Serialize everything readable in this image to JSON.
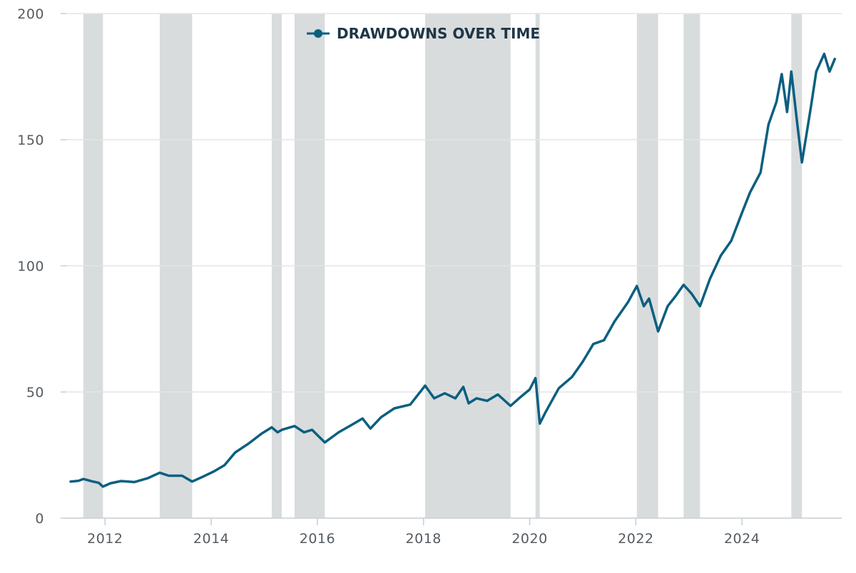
{
  "colors": {
    "line": "#0b5f80",
    "shade": "#d9dcdd",
    "grid": "#e3e5e6",
    "axis": "#c5cdd3",
    "tick_text": "#555b60",
    "legend_text": "#1f3646"
  },
  "legend": {
    "label": "DRAWDOWNS OVER TIME",
    "marker": "line-circle-icon"
  },
  "chart_data": {
    "type": "line",
    "title": "",
    "xlabel": "",
    "ylabel": "",
    "x_range": [
      2011.27,
      2025.88
    ],
    "ylim": [
      0,
      200
    ],
    "y_ticks": [
      0,
      50,
      100,
      150,
      200
    ],
    "x_ticks": [
      2012,
      2014,
      2016,
      2018,
      2020,
      2022,
      2024
    ],
    "grid": true,
    "legend_position": "top-center",
    "drawdown_periods": [
      [
        2011.59,
        2011.96
      ],
      [
        2013.03,
        2013.64
      ],
      [
        2015.14,
        2015.33
      ],
      [
        2015.57,
        2016.14
      ],
      [
        2018.03,
        2019.64
      ],
      [
        2020.11,
        2020.19
      ],
      [
        2022.02,
        2022.42
      ],
      [
        2022.9,
        2023.21
      ],
      [
        2024.93,
        2025.13
      ]
    ],
    "series": [
      {
        "name": "DRAWDOWNS OVER TIME",
        "points": [
          [
            2011.35,
            14.5
          ],
          [
            2011.5,
            14.8
          ],
          [
            2011.59,
            15.5
          ],
          [
            2011.75,
            14.6
          ],
          [
            2011.88,
            14.0
          ],
          [
            2011.96,
            12.5
          ],
          [
            2012.1,
            13.8
          ],
          [
            2012.3,
            14.7
          ],
          [
            2012.55,
            14.3
          ],
          [
            2012.8,
            15.8
          ],
          [
            2013.03,
            18.0
          ],
          [
            2013.2,
            16.8
          ],
          [
            2013.45,
            16.8
          ],
          [
            2013.64,
            14.5
          ],
          [
            2013.85,
            16.5
          ],
          [
            2014.05,
            18.5
          ],
          [
            2014.25,
            21.0
          ],
          [
            2014.45,
            26.0
          ],
          [
            2014.7,
            29.5
          ],
          [
            2014.95,
            33.5
          ],
          [
            2015.14,
            36.0
          ],
          [
            2015.25,
            34.0
          ],
          [
            2015.33,
            35.0
          ],
          [
            2015.57,
            36.5
          ],
          [
            2015.75,
            34.0
          ],
          [
            2015.9,
            35.0
          ],
          [
            2016.14,
            30.0
          ],
          [
            2016.4,
            34.0
          ],
          [
            2016.65,
            37.0
          ],
          [
            2016.85,
            39.5
          ],
          [
            2017.0,
            35.5
          ],
          [
            2017.2,
            40.0
          ],
          [
            2017.45,
            43.5
          ],
          [
            2017.75,
            45.0
          ],
          [
            2018.03,
            52.5
          ],
          [
            2018.2,
            47.5
          ],
          [
            2018.4,
            49.5
          ],
          [
            2018.6,
            47.5
          ],
          [
            2018.75,
            52.0
          ],
          [
            2018.85,
            45.5
          ],
          [
            2019.0,
            47.5
          ],
          [
            2019.2,
            46.5
          ],
          [
            2019.4,
            49.0
          ],
          [
            2019.64,
            44.5
          ],
          [
            2019.8,
            47.5
          ],
          [
            2020.0,
            51.0
          ],
          [
            2020.11,
            55.5
          ],
          [
            2020.19,
            37.5
          ],
          [
            2020.3,
            42.0
          ],
          [
            2020.55,
            51.5
          ],
          [
            2020.8,
            56.0
          ],
          [
            2021.0,
            62.0
          ],
          [
            2021.2,
            69.0
          ],
          [
            2021.4,
            70.5
          ],
          [
            2021.6,
            78.0
          ],
          [
            2021.85,
            85.5
          ],
          [
            2022.02,
            92.0
          ],
          [
            2022.15,
            84.0
          ],
          [
            2022.25,
            87.0
          ],
          [
            2022.42,
            74.0
          ],
          [
            2022.6,
            84.0
          ],
          [
            2022.75,
            88.0
          ],
          [
            2022.9,
            92.5
          ],
          [
            2023.05,
            89.0
          ],
          [
            2023.21,
            84.0
          ],
          [
            2023.4,
            95.0
          ],
          [
            2023.6,
            104.0
          ],
          [
            2023.8,
            110.0
          ],
          [
            2024.0,
            121.0
          ],
          [
            2024.15,
            129.0
          ],
          [
            2024.35,
            137.0
          ],
          [
            2024.5,
            156.0
          ],
          [
            2024.65,
            165.0
          ],
          [
            2024.75,
            176.0
          ],
          [
            2024.85,
            161.0
          ],
          [
            2024.93,
            177.0
          ],
          [
            2025.05,
            155.0
          ],
          [
            2025.13,
            141.0
          ],
          [
            2025.3,
            163.0
          ],
          [
            2025.4,
            177.0
          ],
          [
            2025.55,
            184.0
          ],
          [
            2025.65,
            177.0
          ],
          [
            2025.75,
            182.0
          ]
        ]
      }
    ]
  }
}
